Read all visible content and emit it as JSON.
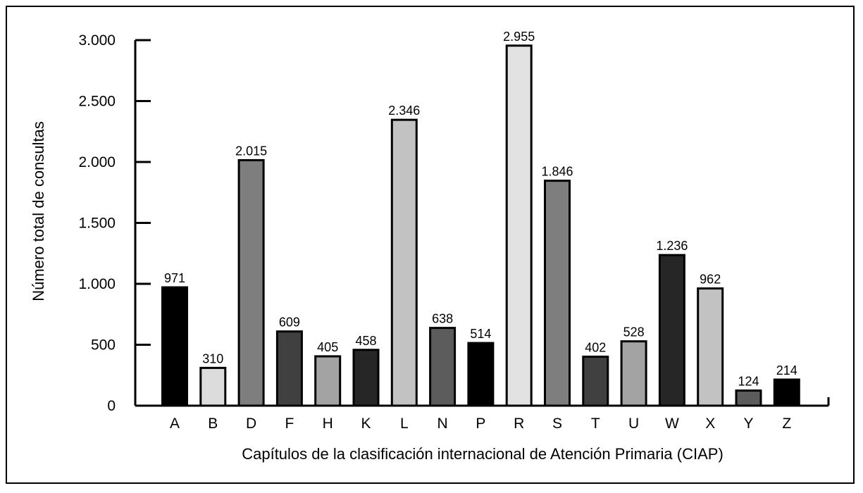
{
  "chart_data": {
    "type": "bar",
    "categories": [
      "A",
      "B",
      "D",
      "F",
      "H",
      "K",
      "L",
      "N",
      "P",
      "R",
      "S",
      "T",
      "U",
      "W",
      "X",
      "Y",
      "Z"
    ],
    "values": [
      971,
      310,
      2015,
      609,
      405,
      458,
      2346,
      638,
      514,
      2955,
      1846,
      402,
      528,
      1236,
      962,
      124,
      214
    ],
    "value_labels": [
      "971",
      "310",
      "2.015",
      "609",
      "405",
      "458",
      "2.346",
      "638",
      "514",
      "2.955",
      "1.846",
      "402",
      "528",
      "1.236",
      "962",
      "124",
      "214"
    ],
    "bar_colors": [
      "#000000",
      "#dcdcdc",
      "#7e7e7e",
      "#404040",
      "#a3a3a3",
      "#262626",
      "#c2c2c2",
      "#5c5c5c",
      "#000000",
      "#e2e2e2",
      "#7e7e7e",
      "#404040",
      "#a3a3a3",
      "#262626",
      "#c2c2c2",
      "#5c5c5c",
      "#000000"
    ],
    "xlabel": "Capítulos de la clasificación internacional de Atención Primaria (CIAP)",
    "ylabel": "Número total de consultas",
    "ylim": [
      0,
      3000
    ],
    "yticks": [
      0,
      500,
      1000,
      1500,
      2000,
      2500,
      3000
    ],
    "ytick_labels": [
      "0",
      "500",
      "1.000",
      "1.500",
      "2.000",
      "2.500",
      "3.000"
    ],
    "grid": false,
    "legend": "none"
  }
}
